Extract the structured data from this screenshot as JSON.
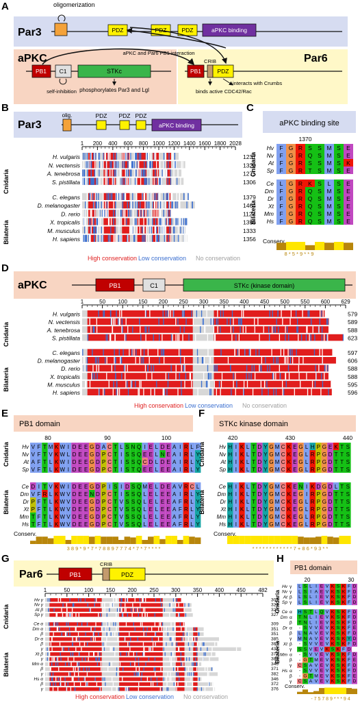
{
  "A": {
    "letter": "A",
    "par3": "Par3",
    "apkc": "aPKC",
    "par6": "Par6",
    "oligomerization": "oligomerization",
    "pdz": "PDZ",
    "apkc_binding": "aPKC binding",
    "pb1": "PB1",
    "c1": "C1",
    "stkc": "STKc",
    "crib": "CRIB",
    "interaction": "aPKC and Par6 PB1 interaction",
    "self_inhibition": "self-inhibition",
    "phosphorylates": "phosphorylates Par3 and Lgl",
    "binds_cdc42": "binds active CDC42/Rac",
    "interacts_crumbs": "interacts with Crumbs"
  },
  "B": {
    "letter": "B",
    "title": "Par3",
    "olig": "olig.",
    "pdz": "PDZ",
    "apkc_binding": "aPKC binding",
    "ticks": [
      "1",
      "200",
      "400",
      "600",
      "800",
      "1000",
      "1200",
      "1400",
      "1600",
      "1800",
      "2028"
    ],
    "cnidaria": "Cnidaria",
    "bilateria": "Bilateria",
    "species_cn": [
      "H. vulgaris",
      "N. vectensis",
      "A. tenebrosa",
      "S. pistillata"
    ],
    "lengths_cn": [
      "1237",
      "1329",
      "1275",
      "1306"
    ],
    "species_bi": [
      "C. elegans",
      "D. melanogaster",
      "D. rerio",
      "X. tropicalis",
      "M. musculus",
      "H. sapiens"
    ],
    "lengths_bi": [
      "1379",
      "1464",
      "1127",
      "1355",
      "1333",
      "1356"
    ]
  },
  "legend": {
    "high": "High conservation",
    "low": "Low conservation",
    "none": "No conservation"
  },
  "C": {
    "letter": "C",
    "title": "aPKC binding site",
    "pos": "1370",
    "cnidaria": "Cnidaria",
    "bilateria": "Bilateria",
    "labels_cn": [
      "Hv",
      "Nv",
      "At",
      "Sp"
    ],
    "labels_bi": [
      "Ce",
      "Dm",
      "Dr",
      "Xt",
      "Mm",
      "Hs"
    ],
    "seq_cn": [
      "FGRSSMSE",
      "FGRQSMSE",
      "FGRSSMSK",
      "FGRTSMSE"
    ],
    "seq_bi": [
      "LGRKSLSE",
      "FGRQSMSE",
      "FGRQSMSE",
      "FGRQSMSE",
      "FGRQSMSE",
      "FGRQSMSE"
    ],
    "conserv": "Conserv.",
    "scores": "8 * 5 * 9 * * 9"
  },
  "D": {
    "letter": "D",
    "title": "aPKC",
    "pb1": "PB1",
    "c1": "C1",
    "stkc": "STKc (kinase domain)",
    "ticks": [
      "1",
      "50",
      "100",
      "150",
      "200",
      "250",
      "300",
      "350",
      "400",
      "450",
      "500",
      "550",
      "600",
      "629"
    ],
    "cnidaria": "Cnidaria",
    "bilateria": "Bilateria",
    "species_cn": [
      "H. vulgaris",
      "N. vectensis",
      "A. tenebrosa",
      "S. pistillata"
    ],
    "lengths_cn": [
      "579",
      "589",
      "588",
      "623"
    ],
    "species_bi": [
      "C. elegans",
      "D. melanogaster",
      "D. rerio",
      "X. tropicalis",
      "M. musculus",
      "H. sapiens"
    ],
    "lengths_bi": [
      "597",
      "606",
      "588",
      "588",
      "595",
      "596"
    ]
  },
  "E": {
    "letter": "E",
    "title": "PB1 domain",
    "pos": [
      "80",
      "90",
      "100"
    ],
    "cnidaria": "Cnidaria",
    "bilateria": "Bilateria",
    "labels_cn": [
      "Hv",
      "Nv",
      "At",
      "Sp"
    ],
    "labels_bi": [
      "Ce",
      "Dm",
      "Dr",
      "Xt",
      "Mm",
      "Hs"
    ],
    "seq_cn": [
      "VFTMKWIDEEGDACTLSNQIELDEAIRLF",
      "VFTVKWLDEEGDPCTISSQEELNEAIRLY",
      "AFTLKWIDEEGDPCTISSQCDLDEAIRLY",
      "VFTLKWIDEEGDPCTISTQEELEEAIRLY"
    ],
    "seq_bi": [
      "DITVKWIDEEGDPISIDSQMELDEAVRCL",
      "VFRLKWVDEENDPCTISSQLELEEAIRLY",
      "PFTLKWVDEEGDPCTVSSQLELEEAFRLY",
      "PFTLKWVDEEGDPCTVSSQLELEEAFRLY",
      "TFTLKWVDEEGDPCTVSSQLELEEAFRLY",
      "TFTLKWVDEEGDPCTVSSQLELEEAFRLY"
    ],
    "conserv": "Conserv.",
    "scores": "3  8  9  *  9  *  7  *  7  8  8  9  7  7  7  4  *  7  *  7  *  *  *  *"
  },
  "F": {
    "letter": "F",
    "title": "STKc kinase domain",
    "pos": [
      "420",
      "430",
      "440"
    ],
    "labels_cn": [
      "Hv",
      "Nv",
      "At",
      "Sp"
    ],
    "labels_bi": [
      "Ce",
      "Dm",
      "Dr",
      "Xt",
      "Mm",
      "Hs"
    ],
    "seq_cn": [
      "HIKLTDYGMCKEGLHPGEKTS",
      "HIKLTDYGMCKEGLRPGDTTS",
      "HIKLTDYGMCKEGLRPGDTTS",
      "HIKLTDYGMCKEGLRPGDTTS"
    ],
    "seq_bi": [
      "HIKLTDYGMCKENIKDGDLTS",
      "HIKLTDYGMCKEGIRPGDTTS",
      "HIKLTDYGMCKEGLRPGDTTS",
      "HIKLTDYGMCKEGLRPGDTTS",
      "HIKLTDYGMCKEGLRPGDTTS",
      "HIKLTDYGMCKEGLRPGDTTS"
    ],
    "conserv": "Conserv.",
    "scores": "*  *  *  *  *  *  *  *  *  *  *  *  7  +  8  6  *  9  3  *  *"
  },
  "G": {
    "letter": "G",
    "title": "Par6",
    "pb1": "PB1",
    "crib": "CRIB",
    "pdz": "PDZ",
    "ticks": [
      "1",
      "50",
      "100",
      "150",
      "200",
      "250",
      "300",
      "350",
      "400",
      "450",
      "482"
    ],
    "cnidaria": "Cnidaria",
    "bilateria": "Bilateria",
    "rows": [
      [
        "Hv",
        "γ",
        "301"
      ],
      [
        "Nv",
        "γ",
        "324"
      ],
      [
        "At",
        "β",
        "324"
      ],
      [
        "Sp",
        "γ",
        "327"
      ],
      [
        "Ce",
        "α",
        "309"
      ],
      [
        "Dm",
        "α",
        "351"
      ],
      [
        "",
        "β",
        "351"
      ],
      [
        "Dr",
        "α",
        "385"
      ],
      [
        "",
        "β",
        "381"
      ],
      [
        "",
        "γ",
        "434"
      ],
      [
        "Xt",
        "β",
        "377"
      ],
      [
        "",
        "γ",
        "384"
      ],
      [
        "Mm",
        "α",
        "346"
      ],
      [
        "",
        "β",
        "371"
      ],
      [
        "",
        "γ",
        "382"
      ],
      [
        "Hs",
        "α",
        "346"
      ],
      [
        "",
        "β",
        "372"
      ],
      [
        "",
        "γ",
        "376"
      ]
    ]
  },
  "H": {
    "letter": "H",
    "title": "PB1 domain",
    "pos": [
      "20",
      "30"
    ],
    "cnidaria": "Cnidaria",
    "bilateria": "Bilateria",
    "rows": [
      [
        "Hv",
        "γ",
        "LSLIEVKSKFD"
      ],
      [
        "Nv",
        "γ",
        "LSIAEVKSKFD"
      ],
      [
        "At",
        "β",
        "LSLIEVKSKFD"
      ],
      [
        "Sp",
        "γ",
        "LSLIEVKSKFD"
      ],
      [
        "Ce",
        "α",
        "HSTLQVKSKFD"
      ],
      [
        "Dm",
        "α",
        "TNLIEVKSKFD"
      ],
      [
        "",
        "β",
        "TNLIEVKSKFD"
      ],
      [
        "Dr",
        "α",
        "-SVVEVKSKFE"
      ],
      [
        "",
        "β",
        "LNAVEVKSKFD"
      ],
      [
        "",
        "γ",
        "MNAVEVKSKYD"
      ],
      [
        "Xt",
        "β",
        "-SVVEVKSKFD"
      ],
      [
        "",
        "γ",
        "SSVEVKSKFD"
      ],
      [
        "Mm",
        "α",
        "-SVVEVKSKFD"
      ],
      [
        "",
        "β",
        "-GTMEVKSKFE"
      ],
      [
        "",
        "γ",
        "CSAVEVKSKFD"
      ],
      [
        "Hs",
        "α",
        "-SVVEVKSKFD"
      ],
      [
        "",
        "β",
        "-GTMEVKSKFE"
      ],
      [
        "",
        "γ",
        "CSAVEVKSKFD"
      ]
    ],
    "conserv": "Conserv.",
    "scores": "- 7 5 7 8 9 * * * 9 4"
  }
}
